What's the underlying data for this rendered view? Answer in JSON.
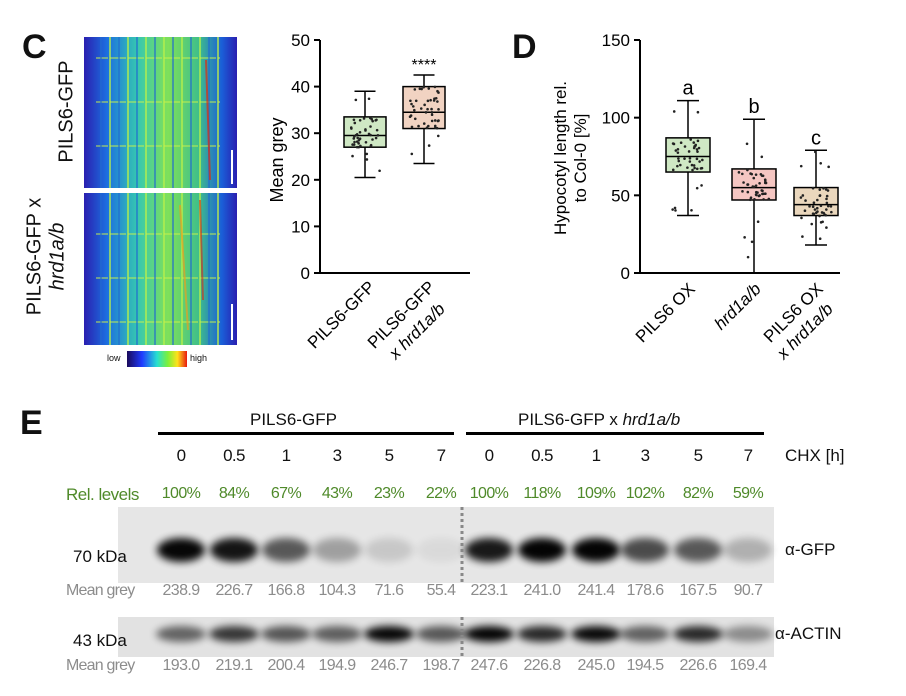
{
  "panel_c": {
    "letter": "C",
    "image_labels": [
      "PILS6-GFP",
      "PILS6-GFP x",
      "hrd1a/b"
    ],
    "colorbar": {
      "low": "low",
      "high": "high"
    },
    "chart_data": {
      "type": "box",
      "ylabel": "Mean grey",
      "ylim": [
        0,
        50
      ],
      "yticks": [
        "0",
        "10",
        "20",
        "30",
        "40",
        "50"
      ],
      "categories": [
        "PILS6-GFP",
        "PILS6-GFP",
        "x hrd1a/b"
      ],
      "significance": "****",
      "boxes": [
        {
          "min": 20.5,
          "q1": 27,
          "median": 29.5,
          "q3": 33.5,
          "max": 39,
          "color": "#cfe8c4"
        },
        {
          "min": 23.5,
          "q1": 31,
          "median": 34.5,
          "q3": 40,
          "max": 42.5,
          "color": "#f1d3c2"
        }
      ]
    }
  },
  "panel_d": {
    "letter": "D",
    "chart_data": {
      "type": "box",
      "ylabel_lines": [
        "Hypocotyl length rel.",
        "to Col-0 [%]"
      ],
      "ylim": [
        0,
        150
      ],
      "yticks": [
        "0",
        "50",
        "100",
        "150"
      ],
      "categories": [
        "PILS6 OX",
        "hrd1a/b",
        "PILS6 OX",
        "x hrd1a/b"
      ],
      "letters": [
        "a",
        "b",
        "c"
      ],
      "boxes": [
        {
          "min": 37,
          "q1": 65,
          "median": 75,
          "q3": 87,
          "max": 111,
          "color": "#cfe8c4"
        },
        {
          "min": 0,
          "q1": 47,
          "median": 55,
          "q3": 67,
          "max": 99,
          "color": "#f5c6c2"
        },
        {
          "min": 18,
          "q1": 37,
          "median": 44,
          "q3": 55,
          "max": 79,
          "color": "#ead7bd"
        }
      ]
    }
  },
  "panel_e": {
    "letter": "E",
    "group1": "PILS6-GFP",
    "group2_prefix": "PILS6-GFP x ",
    "group2_italic": "hrd1a/b",
    "chx_label": "CHX [h]",
    "timepoints": [
      "0",
      "0.5",
      "1",
      "3",
      "5",
      "7",
      "0",
      "0.5",
      "1",
      "3",
      "5",
      "7"
    ],
    "rel_label": "Rel. levels",
    "rel_levels": [
      "100%",
      "84%",
      "67%",
      "43%",
      "23%",
      "22%",
      "100%",
      "118%",
      "109%",
      "102%",
      "82%",
      "59%"
    ],
    "gfp": {
      "kda": "70 kDa",
      "antibody": "α-GFP",
      "mean_label": "Mean grey",
      "mean_values": [
        "238.9",
        "226.7",
        "166.8",
        "104.3",
        "71.6",
        "55.4",
        "223.1",
        "241.0",
        "241.4",
        "178.6",
        "167.5",
        "90.7"
      ]
    },
    "actin": {
      "kda": "43 kDa",
      "antibody": "α-ACTIN",
      "mean_label": "Mean grey",
      "mean_values": [
        "193.0",
        "219.1",
        "200.4",
        "194.9",
        "246.7",
        "198.7",
        "247.6",
        "226.8",
        "245.0",
        "194.5",
        "226.6",
        "169.4"
      ]
    }
  }
}
